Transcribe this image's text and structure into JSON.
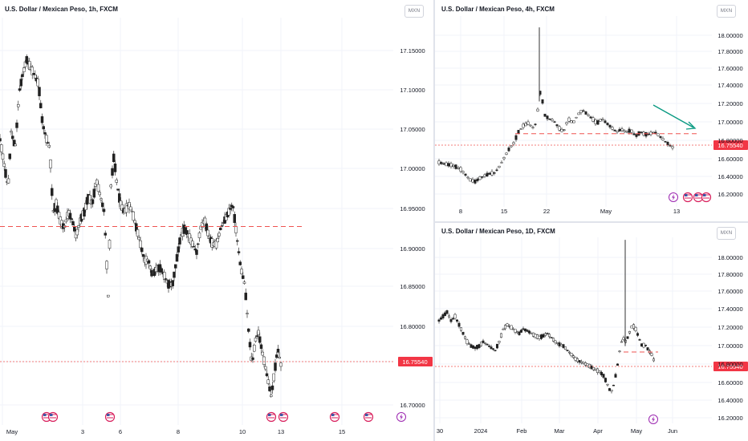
{
  "colors": {
    "up": "#26a69a",
    "down": "#ef5350",
    "candle_body": "#222222",
    "grid": "#f0f3fa",
    "axis_text": "#131722",
    "price_line": "#ef5350",
    "price_badge": "#f23645",
    "arrow": "#089981",
    "event_flag": "#d81e5b",
    "event_bolt": "#9c27b0"
  },
  "panes": [
    {
      "title": "U.S. Dollar / Mexican Peso, 1h, FXCM",
      "currency": "MXN",
      "last_price": "16.75540",
      "chart_data": {
        "type": "candlestick",
        "ylim": [
          16.685,
          17.192
        ],
        "yticks": [
          "17.15000",
          "17.10000",
          "17.05000",
          "17.00000",
          "16.95000",
          "16.90000",
          "16.85000",
          "16.80000",
          "16.75540",
          "16.70000"
        ],
        "xticks": [
          "May",
          "3",
          "6",
          "8",
          "10",
          "13",
          "15"
        ],
        "dashed_level": 16.932,
        "icons": [
          "us-flag-icon",
          "us-flag-icon",
          "us-flag-icon",
          "us-flag-icon",
          "us-flag-icon",
          "us-flag-icon",
          "us-flag-icon",
          "bolt-icon"
        ],
        "path": [
          [
            0,
            17.04
          ],
          [
            5,
            17.01
          ],
          [
            10,
            16.98
          ],
          [
            14,
            17.05
          ],
          [
            19,
            17.03
          ],
          [
            24,
            17.1
          ],
          [
            28,
            17.12
          ],
          [
            33,
            17.14
          ],
          [
            38,
            17.13
          ],
          [
            43,
            17.12
          ],
          [
            48,
            17.11
          ],
          [
            53,
            17.06
          ],
          [
            58,
            17.04
          ],
          [
            62,
            17.03
          ],
          [
            66,
            16.95
          ],
          [
            70,
            16.96
          ],
          [
            75,
            16.94
          ],
          [
            80,
            16.93
          ],
          [
            85,
            16.95
          ],
          [
            90,
            16.94
          ],
          [
            95,
            16.92
          ],
          [
            100,
            16.94
          ],
          [
            105,
            16.95
          ],
          [
            110,
            16.97
          ],
          [
            115,
            16.96
          ],
          [
            120,
            16.99
          ],
          [
            125,
            16.97
          ],
          [
            130,
            16.95
          ],
          [
            135,
            16.84
          ],
          [
            138,
            16.98
          ],
          [
            142,
            17.02
          ],
          [
            145,
            16.99
          ],
          [
            150,
            16.96
          ],
          [
            155,
            16.95
          ],
          [
            160,
            16.96
          ],
          [
            165,
            16.95
          ],
          [
            170,
            16.93
          ],
          [
            175,
            16.91
          ],
          [
            180,
            16.89
          ],
          [
            185,
            16.89
          ],
          [
            190,
            16.87
          ],
          [
            195,
            16.88
          ],
          [
            200,
            16.88
          ],
          [
            205,
            16.87
          ],
          [
            210,
            16.86
          ],
          [
            215,
            16.86
          ],
          [
            220,
            16.89
          ],
          [
            225,
            16.92
          ],
          [
            230,
            16.93
          ],
          [
            235,
            16.92
          ],
          [
            240,
            16.91
          ],
          [
            245,
            16.9
          ],
          [
            250,
            16.93
          ],
          [
            255,
            16.94
          ],
          [
            260,
            16.92
          ],
          [
            265,
            16.91
          ],
          [
            270,
            16.91
          ],
          [
            275,
            16.93
          ],
          [
            280,
            16.94
          ],
          [
            285,
            16.95
          ],
          [
            290,
            16.96
          ],
          [
            295,
            16.92
          ],
          [
            300,
            16.88
          ],
          [
            305,
            16.86
          ],
          [
            310,
            16.8
          ],
          [
            314,
            16.76
          ],
          [
            318,
            16.79
          ],
          [
            322,
            16.8
          ],
          [
            326,
            16.78
          ],
          [
            330,
            16.76
          ],
          [
            334,
            16.74
          ],
          [
            338,
            16.72
          ],
          [
            342,
            16.75
          ],
          [
            346,
            16.78
          ],
          [
            350,
            16.76
          ]
        ]
      }
    },
    {
      "title": "U.S. Dollar / Mexican Peso, 4h, FXCM",
      "currency": "MXN",
      "last_price": "16.75540",
      "chart_data": {
        "type": "candlestick",
        "ylim": [
          16.09,
          18.28
        ],
        "yticks": [
          "18.00000",
          "17.80000",
          "17.60000",
          "17.40000",
          "17.20000",
          "17.00000",
          "16.80000",
          "16.60000",
          "16.40000",
          "16.20000"
        ],
        "xticks": [
          "8",
          "15",
          "22",
          "May",
          "13"
        ],
        "dashed_level": 16.93,
        "icons": [
          "bolt-icon",
          "us-flag-icon",
          "us-flag-icon",
          "us-flag-icon"
        ],
        "path": [
          [
            547,
            16.6
          ],
          [
            555,
            16.58
          ],
          [
            562,
            16.57
          ],
          [
            568,
            16.55
          ],
          [
            574,
            16.52
          ],
          [
            580,
            16.46
          ],
          [
            586,
            16.4
          ],
          [
            592,
            16.38
          ],
          [
            598,
            16.42
          ],
          [
            604,
            16.45
          ],
          [
            610,
            16.47
          ],
          [
            616,
            16.48
          ],
          [
            622,
            16.55
          ],
          [
            628,
            16.65
          ],
          [
            634,
            16.75
          ],
          [
            640,
            16.82
          ],
          [
            646,
            16.95
          ],
          [
            652,
            17.02
          ],
          [
            658,
            17.05
          ],
          [
            664,
            17.0
          ],
          [
            668,
            17.05
          ],
          [
            672,
            17.35
          ],
          [
            674,
            17.45
          ],
          [
            678,
            17.15
          ],
          [
            684,
            17.1
          ],
          [
            690,
            17.08
          ],
          [
            696,
            17.0
          ],
          [
            702,
            16.95
          ],
          [
            708,
            17.1
          ],
          [
            714,
            17.05
          ],
          [
            720,
            17.15
          ],
          [
            726,
            17.2
          ],
          [
            732,
            17.15
          ],
          [
            738,
            17.1
          ],
          [
            744,
            17.05
          ],
          [
            750,
            17.1
          ],
          [
            756,
            17.05
          ],
          [
            762,
            17.0
          ],
          [
            768,
            16.95
          ],
          [
            774,
            16.98
          ],
          [
            780,
            16.95
          ],
          [
            786,
            16.97
          ],
          [
            792,
            16.9
          ],
          [
            798,
            16.95
          ],
          [
            804,
            16.92
          ],
          [
            810,
            16.93
          ],
          [
            816,
            16.95
          ],
          [
            822,
            16.9
          ],
          [
            828,
            16.85
          ],
          [
            834,
            16.8
          ],
          [
            840,
            16.76
          ]
        ]
      }
    },
    {
      "title": "U.S. Dollar / Mexican Peso, 1D, FXCM",
      "currency": "MXN",
      "last_price": "16.75540",
      "chart_data": {
        "type": "candlestick",
        "ylim": [
          16.09,
          18.28
        ],
        "yticks": [
          "18.00000",
          "17.80000",
          "17.60000",
          "17.40000",
          "17.20000",
          "17.00000",
          "16.80000",
          "16.60000",
          "16.40000",
          "16.20000"
        ],
        "xticks": [
          "30",
          "2024",
          "Feb",
          "Mar",
          "Apr",
          "May",
          "Jun"
        ],
        "dashed_level": 16.93,
        "icons": [
          "bolt-icon"
        ],
        "path": [
          [
            547,
            17.3
          ],
          [
            552,
            17.35
          ],
          [
            557,
            17.4
          ],
          [
            562,
            17.3
          ],
          [
            567,
            17.35
          ],
          [
            572,
            17.25
          ],
          [
            577,
            17.15
          ],
          [
            582,
            17.05
          ],
          [
            587,
            17.0
          ],
          [
            592,
            16.98
          ],
          [
            597,
            17.0
          ],
          [
            602,
            17.05
          ],
          [
            607,
            17.02
          ],
          [
            612,
            16.98
          ],
          [
            617,
            16.95
          ],
          [
            622,
            17.05
          ],
          [
            627,
            17.2
          ],
          [
            632,
            17.25
          ],
          [
            637,
            17.22
          ],
          [
            642,
            17.18
          ],
          [
            647,
            17.15
          ],
          [
            652,
            17.2
          ],
          [
            657,
            17.18
          ],
          [
            662,
            17.15
          ],
          [
            667,
            17.12
          ],
          [
            672,
            17.1
          ],
          [
            677,
            17.12
          ],
          [
            682,
            17.15
          ],
          [
            687,
            17.1
          ],
          [
            692,
            17.05
          ],
          [
            697,
            17.02
          ],
          [
            702,
            17.0
          ],
          [
            707,
            16.95
          ],
          [
            712,
            16.9
          ],
          [
            717,
            16.85
          ],
          [
            722,
            16.82
          ],
          [
            727,
            16.8
          ],
          [
            732,
            16.78
          ],
          [
            737,
            16.75
          ],
          [
            742,
            16.72
          ],
          [
            747,
            16.7
          ],
          [
            752,
            16.65
          ],
          [
            757,
            16.55
          ],
          [
            761,
            16.45
          ],
          [
            765,
            16.55
          ],
          [
            769,
            16.75
          ],
          [
            773,
            17.0
          ],
          [
            776,
            17.1
          ],
          [
            780,
            17.05
          ],
          [
            784,
            17.15
          ],
          [
            788,
            17.25
          ],
          [
            792,
            17.2
          ],
          [
            796,
            17.1
          ],
          [
            800,
            17.0
          ],
          [
            804,
            17.02
          ],
          [
            808,
            16.95
          ],
          [
            812,
            16.9
          ],
          [
            816,
            16.8
          ]
        ]
      }
    }
  ]
}
